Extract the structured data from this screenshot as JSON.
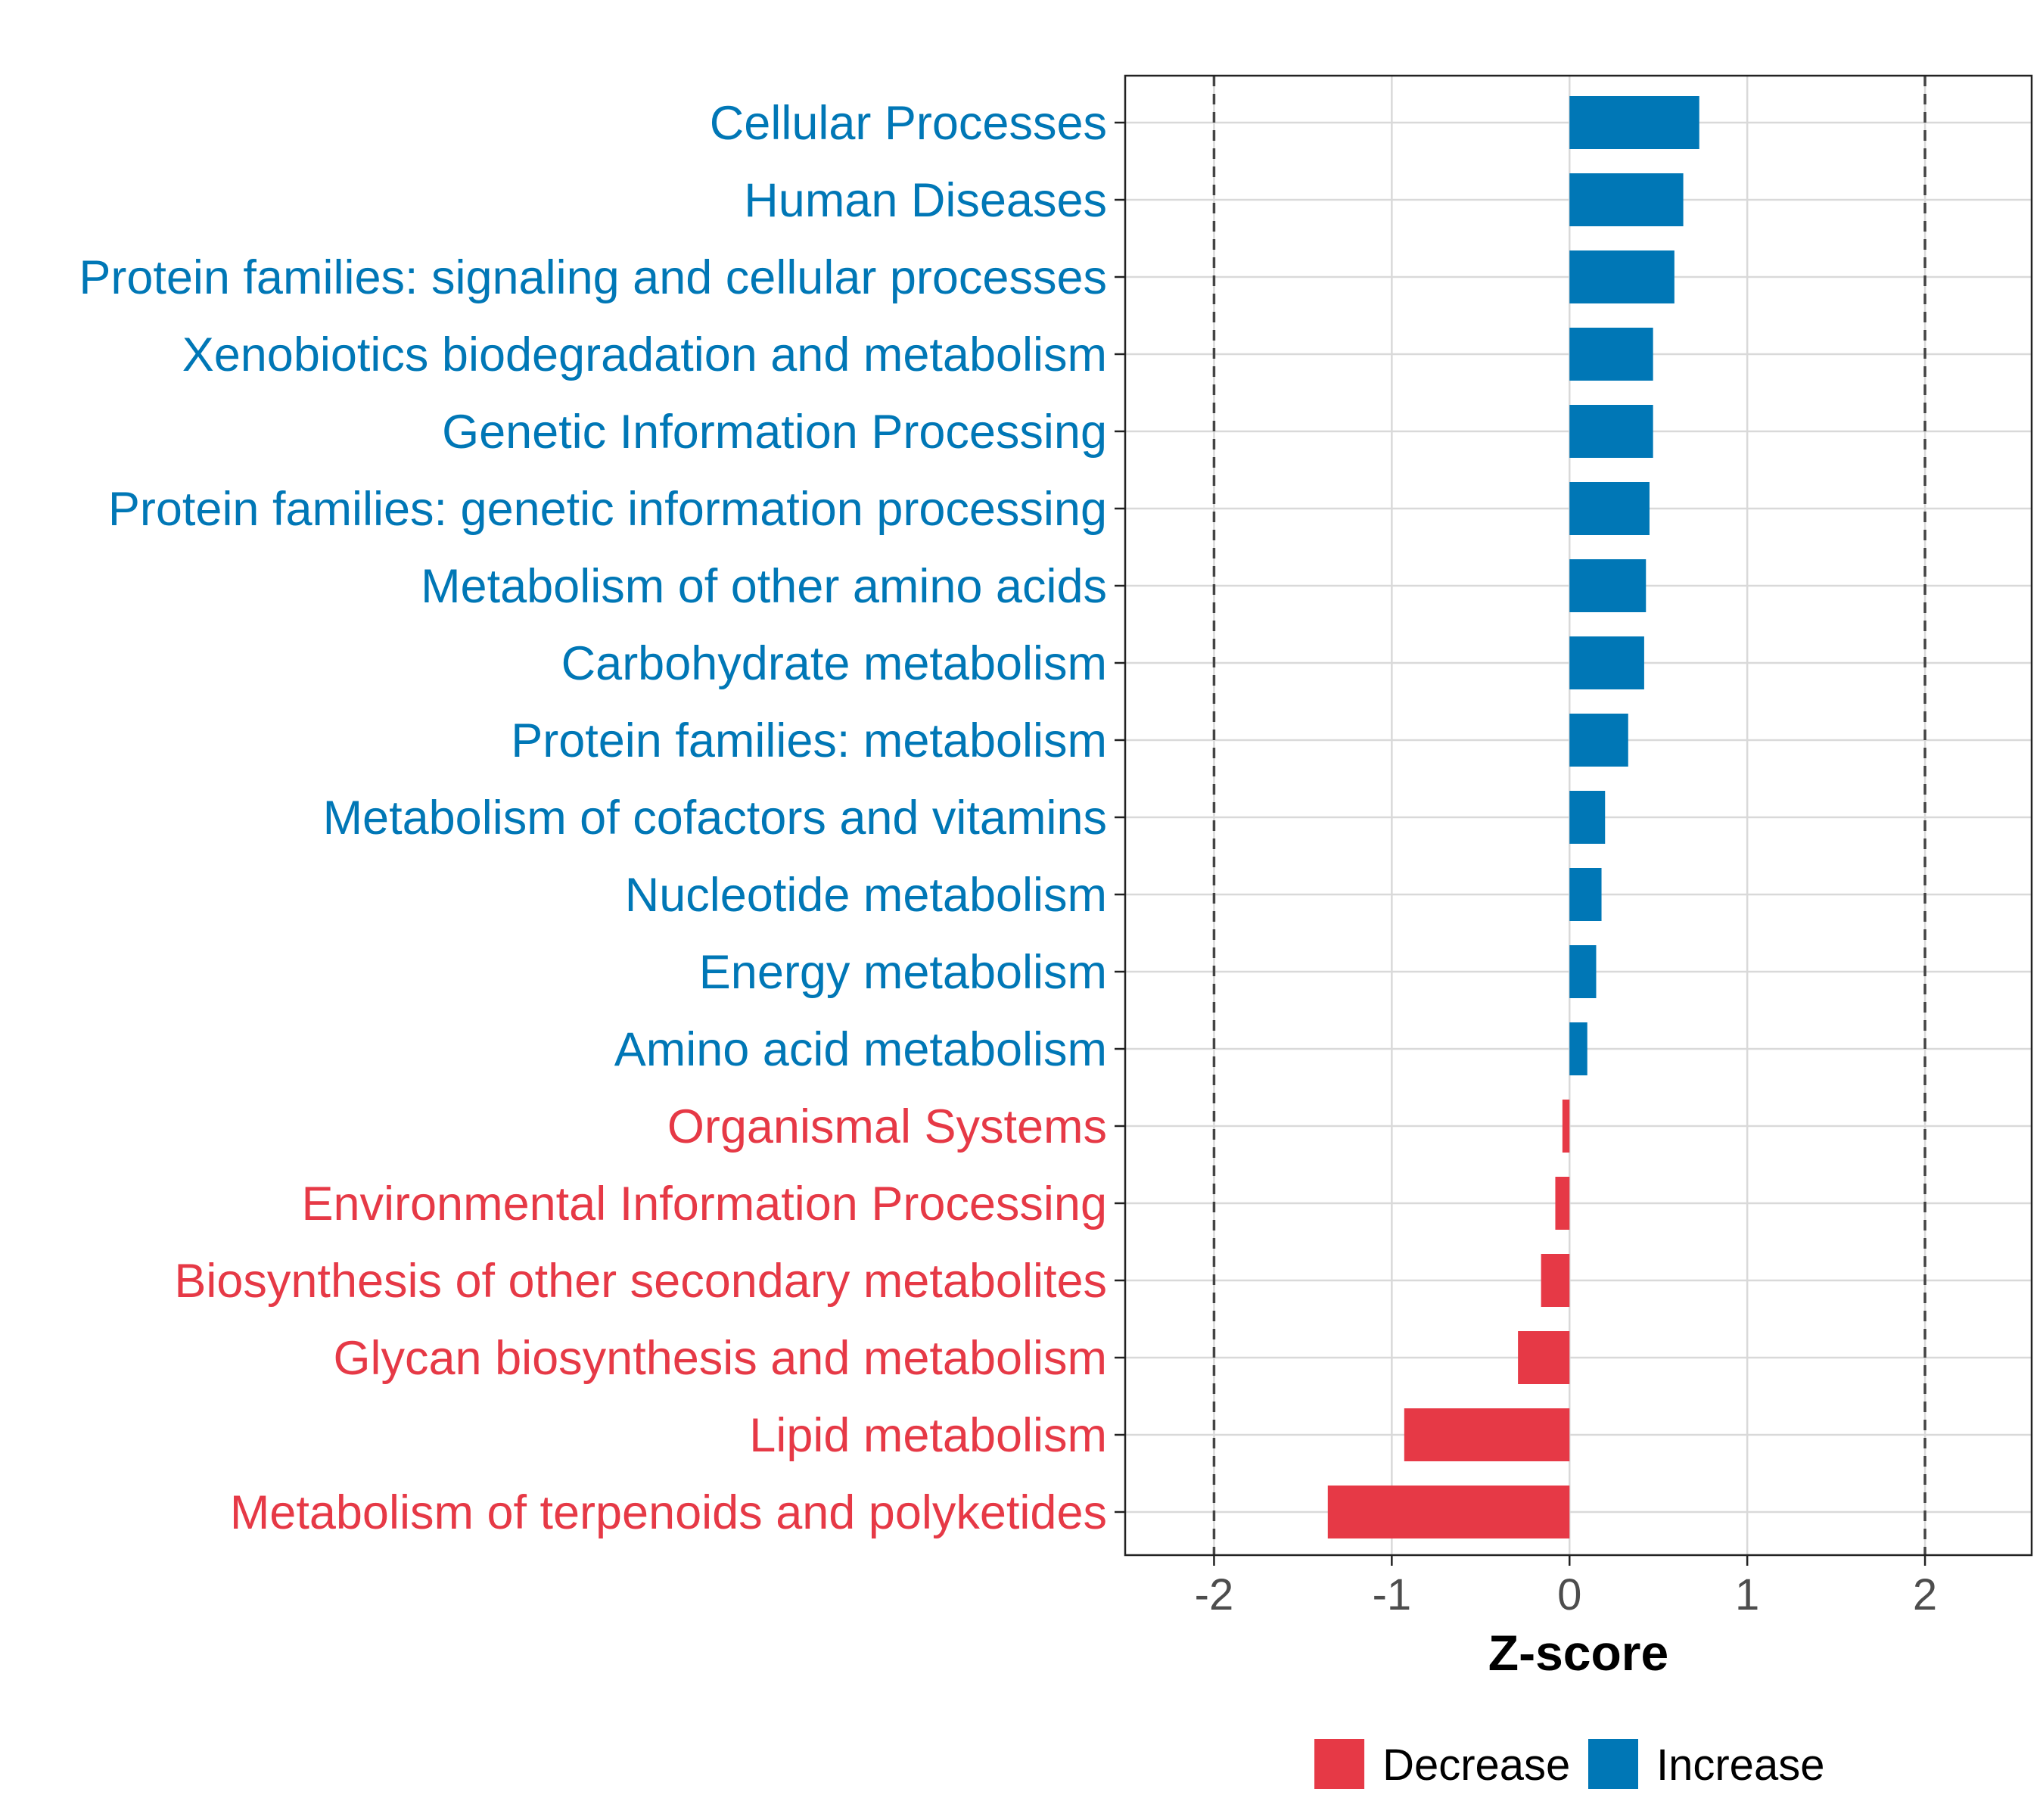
{
  "chart_data": {
    "type": "bar",
    "orientation": "horizontal",
    "xlabel": "Z-score",
    "xlim": [
      -2.5,
      2.6
    ],
    "xticks": [
      -2,
      -1,
      0,
      1,
      2
    ],
    "xtick_labels": [
      "-2",
      "-1",
      "0",
      "1",
      "2"
    ],
    "reference_lines": [
      -2,
      2
    ],
    "grid": true,
    "categories": [
      "Cellular Processes",
      "Human Diseases",
      "Protein families: signaling and cellular processes",
      "Xenobiotics biodegradation and metabolism",
      "Genetic Information Processing",
      "Protein families: genetic information processing",
      "Metabolism of other amino acids",
      "Carbohydrate metabolism",
      "Protein families: metabolism",
      "Metabolism of cofactors and vitamins",
      "Nucleotide metabolism",
      "Energy metabolism",
      "Amino acid metabolism",
      "Organismal Systems",
      "Environmental Information Processing",
      "Biosynthesis of other secondary metabolites",
      "Glycan biosynthesis and metabolism",
      "Lipid metabolism",
      "Metabolism of terpenoids and polyketides"
    ],
    "values": [
      0.73,
      0.64,
      0.59,
      0.47,
      0.47,
      0.45,
      0.43,
      0.42,
      0.33,
      0.2,
      0.18,
      0.15,
      0.1,
      -0.04,
      -0.08,
      -0.16,
      -0.29,
      -0.93,
      -1.36
    ],
    "colors": {
      "Decrease": "#e63946",
      "Increase": "#0077b6"
    },
    "legend": {
      "position": "bottom",
      "entries": [
        {
          "label": "Decrease",
          "color": "#e63946"
        },
        {
          "label": "Increase",
          "color": "#0077b6"
        }
      ]
    }
  }
}
